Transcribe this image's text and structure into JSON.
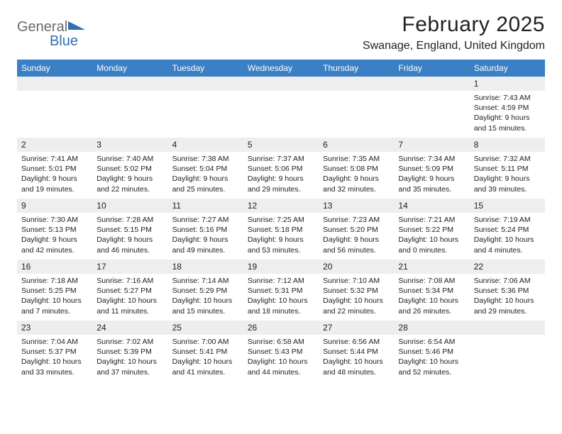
{
  "logo": {
    "text_general": "General",
    "text_blue": "Blue",
    "general_color": "#6a6a6a",
    "blue_color": "#2f6fb3",
    "tri_color": "#2f6fb3"
  },
  "title": "February 2025",
  "location": "Swanage, England, United Kingdom",
  "colors": {
    "header_bg": "#3b7fc4",
    "header_text": "#ffffff",
    "daynum_bg": "#eeeeee",
    "row_border": "#3b7fc4",
    "body_text": "#222222",
    "page_bg": "#ffffff"
  },
  "weekday_labels": [
    "Sunday",
    "Monday",
    "Tuesday",
    "Wednesday",
    "Thursday",
    "Friday",
    "Saturday"
  ],
  "weeks": [
    [
      null,
      null,
      null,
      null,
      null,
      null,
      {
        "n": "1",
        "sr": "Sunrise: 7:43 AM",
        "ss": "Sunset: 4:59 PM",
        "dl1": "Daylight: 9 hours",
        "dl2": "and 15 minutes."
      }
    ],
    [
      {
        "n": "2",
        "sr": "Sunrise: 7:41 AM",
        "ss": "Sunset: 5:01 PM",
        "dl1": "Daylight: 9 hours",
        "dl2": "and 19 minutes."
      },
      {
        "n": "3",
        "sr": "Sunrise: 7:40 AM",
        "ss": "Sunset: 5:02 PM",
        "dl1": "Daylight: 9 hours",
        "dl2": "and 22 minutes."
      },
      {
        "n": "4",
        "sr": "Sunrise: 7:38 AM",
        "ss": "Sunset: 5:04 PM",
        "dl1": "Daylight: 9 hours",
        "dl2": "and 25 minutes."
      },
      {
        "n": "5",
        "sr": "Sunrise: 7:37 AM",
        "ss": "Sunset: 5:06 PM",
        "dl1": "Daylight: 9 hours",
        "dl2": "and 29 minutes."
      },
      {
        "n": "6",
        "sr": "Sunrise: 7:35 AM",
        "ss": "Sunset: 5:08 PM",
        "dl1": "Daylight: 9 hours",
        "dl2": "and 32 minutes."
      },
      {
        "n": "7",
        "sr": "Sunrise: 7:34 AM",
        "ss": "Sunset: 5:09 PM",
        "dl1": "Daylight: 9 hours",
        "dl2": "and 35 minutes."
      },
      {
        "n": "8",
        "sr": "Sunrise: 7:32 AM",
        "ss": "Sunset: 5:11 PM",
        "dl1": "Daylight: 9 hours",
        "dl2": "and 39 minutes."
      }
    ],
    [
      {
        "n": "9",
        "sr": "Sunrise: 7:30 AM",
        "ss": "Sunset: 5:13 PM",
        "dl1": "Daylight: 9 hours",
        "dl2": "and 42 minutes."
      },
      {
        "n": "10",
        "sr": "Sunrise: 7:28 AM",
        "ss": "Sunset: 5:15 PM",
        "dl1": "Daylight: 9 hours",
        "dl2": "and 46 minutes."
      },
      {
        "n": "11",
        "sr": "Sunrise: 7:27 AM",
        "ss": "Sunset: 5:16 PM",
        "dl1": "Daylight: 9 hours",
        "dl2": "and 49 minutes."
      },
      {
        "n": "12",
        "sr": "Sunrise: 7:25 AM",
        "ss": "Sunset: 5:18 PM",
        "dl1": "Daylight: 9 hours",
        "dl2": "and 53 minutes."
      },
      {
        "n": "13",
        "sr": "Sunrise: 7:23 AM",
        "ss": "Sunset: 5:20 PM",
        "dl1": "Daylight: 9 hours",
        "dl2": "and 56 minutes."
      },
      {
        "n": "14",
        "sr": "Sunrise: 7:21 AM",
        "ss": "Sunset: 5:22 PM",
        "dl1": "Daylight: 10 hours",
        "dl2": "and 0 minutes."
      },
      {
        "n": "15",
        "sr": "Sunrise: 7:19 AM",
        "ss": "Sunset: 5:24 PM",
        "dl1": "Daylight: 10 hours",
        "dl2": "and 4 minutes."
      }
    ],
    [
      {
        "n": "16",
        "sr": "Sunrise: 7:18 AM",
        "ss": "Sunset: 5:25 PM",
        "dl1": "Daylight: 10 hours",
        "dl2": "and 7 minutes."
      },
      {
        "n": "17",
        "sr": "Sunrise: 7:16 AM",
        "ss": "Sunset: 5:27 PM",
        "dl1": "Daylight: 10 hours",
        "dl2": "and 11 minutes."
      },
      {
        "n": "18",
        "sr": "Sunrise: 7:14 AM",
        "ss": "Sunset: 5:29 PM",
        "dl1": "Daylight: 10 hours",
        "dl2": "and 15 minutes."
      },
      {
        "n": "19",
        "sr": "Sunrise: 7:12 AM",
        "ss": "Sunset: 5:31 PM",
        "dl1": "Daylight: 10 hours",
        "dl2": "and 18 minutes."
      },
      {
        "n": "20",
        "sr": "Sunrise: 7:10 AM",
        "ss": "Sunset: 5:32 PM",
        "dl1": "Daylight: 10 hours",
        "dl2": "and 22 minutes."
      },
      {
        "n": "21",
        "sr": "Sunrise: 7:08 AM",
        "ss": "Sunset: 5:34 PM",
        "dl1": "Daylight: 10 hours",
        "dl2": "and 26 minutes."
      },
      {
        "n": "22",
        "sr": "Sunrise: 7:06 AM",
        "ss": "Sunset: 5:36 PM",
        "dl1": "Daylight: 10 hours",
        "dl2": "and 29 minutes."
      }
    ],
    [
      {
        "n": "23",
        "sr": "Sunrise: 7:04 AM",
        "ss": "Sunset: 5:37 PM",
        "dl1": "Daylight: 10 hours",
        "dl2": "and 33 minutes."
      },
      {
        "n": "24",
        "sr": "Sunrise: 7:02 AM",
        "ss": "Sunset: 5:39 PM",
        "dl1": "Daylight: 10 hours",
        "dl2": "and 37 minutes."
      },
      {
        "n": "25",
        "sr": "Sunrise: 7:00 AM",
        "ss": "Sunset: 5:41 PM",
        "dl1": "Daylight: 10 hours",
        "dl2": "and 41 minutes."
      },
      {
        "n": "26",
        "sr": "Sunrise: 6:58 AM",
        "ss": "Sunset: 5:43 PM",
        "dl1": "Daylight: 10 hours",
        "dl2": "and 44 minutes."
      },
      {
        "n": "27",
        "sr": "Sunrise: 6:56 AM",
        "ss": "Sunset: 5:44 PM",
        "dl1": "Daylight: 10 hours",
        "dl2": "and 48 minutes."
      },
      {
        "n": "28",
        "sr": "Sunrise: 6:54 AM",
        "ss": "Sunset: 5:46 PM",
        "dl1": "Daylight: 10 hours",
        "dl2": "and 52 minutes."
      },
      null
    ]
  ]
}
